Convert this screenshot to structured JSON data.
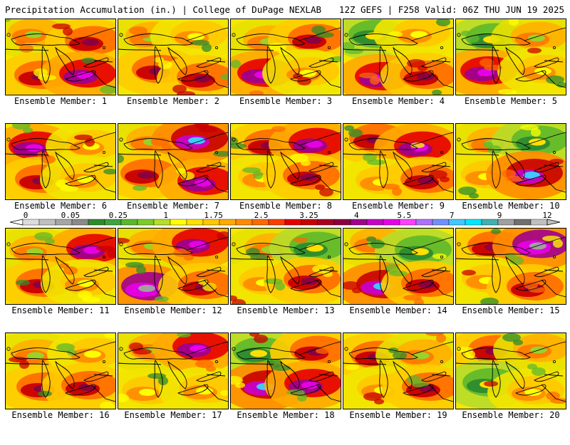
{
  "header": {
    "left": "Precipitation Accumulation (in.) | College of DuPage NEXLAB",
    "right": "12Z GEFS | F258 Valid: 06Z THU JUN 19 2025"
  },
  "colorbar": {
    "tick_labels": [
      "0",
      "0.05",
      "0.25",
      "1",
      "1.75",
      "2.5",
      "3.25",
      "4",
      "5.5",
      "7",
      "9",
      "12"
    ],
    "colors": [
      "#dcdcdc",
      "#c0c0c0",
      "#a6a6a6",
      "#8a8a8a",
      "#2e8b2e",
      "#3fa33f",
      "#59b82a",
      "#7dcc2a",
      "#b4e02a",
      "#ffff00",
      "#ffe000",
      "#ffc800",
      "#ffaa00",
      "#ff8c00",
      "#ff6a00",
      "#ff3c00",
      "#e60000",
      "#c80000",
      "#aa0020",
      "#8c0040",
      "#a0008c",
      "#c800c8",
      "#e600e6",
      "#ff40ff",
      "#b070ff",
      "#7090ff",
      "#40c8ff",
      "#00e6ff",
      "#40b0b0",
      "#a0a0a0",
      "#707070",
      "#c0c0c0"
    ]
  },
  "panels": [
    {
      "label": "Ensemble Member: 1",
      "zones": [
        "dry",
        "wet",
        "wet",
        "purple"
      ]
    },
    {
      "label": "Ensemble Member: 2",
      "zones": [
        "dry",
        "yellow",
        "wet",
        "wet"
      ]
    },
    {
      "label": "Ensemble Member: 3",
      "zones": [
        "dry",
        "wet",
        "purple",
        "yellow"
      ]
    },
    {
      "label": "Ensemble Member: 4",
      "zones": [
        "green",
        "yellow",
        "purple",
        "wet"
      ]
    },
    {
      "label": "Ensemble Member: 5",
      "zones": [
        "green",
        "dry",
        "purple",
        "yellow"
      ]
    },
    {
      "label": "Ensemble Member: 6",
      "zones": [
        "purple",
        "yellow",
        "wet",
        "yellow"
      ]
    },
    {
      "label": "Ensemble Member: 7",
      "zones": [
        "dry",
        "cyan",
        "wet",
        "purple"
      ]
    },
    {
      "label": "Ensemble Member: 8",
      "zones": [
        "wet",
        "purple",
        "yellow",
        "wet"
      ]
    },
    {
      "label": "Ensemble Member: 9",
      "zones": [
        "wet",
        "purple",
        "yellow",
        "wet"
      ]
    },
    {
      "label": "Ensemble Member: 10",
      "zones": [
        "dry",
        "green",
        "yellow",
        "cyan"
      ]
    },
    {
      "label": "Ensemble Member: 11",
      "zones": [
        "dry",
        "purple",
        "wet",
        "yellow"
      ]
    },
    {
      "label": "Ensemble Member: 12",
      "zones": [
        "dry",
        "purple",
        "grey",
        "wet"
      ]
    },
    {
      "label": "Ensemble Member: 13",
      "zones": [
        "dry",
        "green",
        "yellow",
        "wet"
      ]
    },
    {
      "label": "Ensemble Member: 14",
      "zones": [
        "dry",
        "green",
        "cyan",
        "wet"
      ]
    },
    {
      "label": "Ensemble Member: 15",
      "zones": [
        "wet",
        "grey",
        "yellow",
        "wet"
      ]
    },
    {
      "label": "Ensemble Member: 16",
      "zones": [
        "dry",
        "yellow",
        "wet",
        "wet"
      ]
    },
    {
      "label": "Ensemble Member: 17",
      "zones": [
        "dry",
        "purple",
        "yellow",
        "yellow"
      ]
    },
    {
      "label": "Ensemble Member: 18",
      "zones": [
        "green",
        "wet",
        "cyan",
        "purple"
      ]
    },
    {
      "label": "Ensemble Member: 19",
      "zones": [
        "wet",
        "dry",
        "yellow",
        "wet"
      ]
    },
    {
      "label": "Ensemble Member: 20",
      "zones": [
        "wet",
        "dry",
        "green",
        "yellow"
      ]
    }
  ]
}
